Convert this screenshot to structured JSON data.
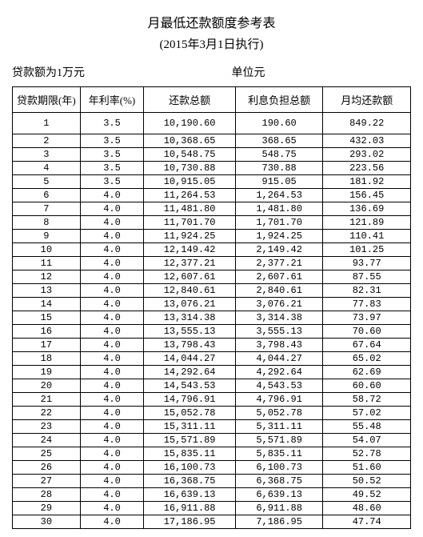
{
  "title": "月最低还款额度参考表",
  "subtitle": "(2015年3月1日执行)",
  "meta": {
    "loan_amount": "贷款额为1万元",
    "unit": "单位元"
  },
  "columns": [
    "贷款期限(年)",
    "年利率(%)",
    "还款总额",
    "利息负担总额",
    "月均还款额"
  ],
  "rows": [
    [
      "1",
      "3.5",
      "10,190.60",
      "190.60",
      "849.22"
    ],
    [
      "2",
      "3.5",
      "10,368.65",
      "368.65",
      "432.03"
    ],
    [
      "3",
      "3.5",
      "10,548.75",
      "548.75",
      "293.02"
    ],
    [
      "4",
      "3.5",
      "10,730.88",
      "730.88",
      "223.56"
    ],
    [
      "5",
      "3.5",
      "10,915.05",
      "915.05",
      "181.92"
    ],
    [
      "6",
      "4.0",
      "11,264.53",
      "1,264.53",
      "156.45"
    ],
    [
      "7",
      "4.0",
      "11,481.80",
      "1,481.80",
      "136.69"
    ],
    [
      "8",
      "4.0",
      "11,701.70",
      "1,701.70",
      "121.89"
    ],
    [
      "9",
      "4.0",
      "11,924.25",
      "1,924.25",
      "110.41"
    ],
    [
      "10",
      "4.0",
      "12,149.42",
      "2,149.42",
      "101.25"
    ],
    [
      "11",
      "4.0",
      "12,377.21",
      "2,377.21",
      "93.77"
    ],
    [
      "12",
      "4.0",
      "12,607.61",
      "2,607.61",
      "87.55"
    ],
    [
      "13",
      "4.0",
      "12,840.61",
      "2,840.61",
      "82.31"
    ],
    [
      "14",
      "4.0",
      "13,076.21",
      "3,076.21",
      "77.83"
    ],
    [
      "15",
      "4.0",
      "13,314.38",
      "3,314.38",
      "73.97"
    ],
    [
      "16",
      "4.0",
      "13,555.13",
      "3,555.13",
      "70.60"
    ],
    [
      "17",
      "4.0",
      "13,798.43",
      "3,798.43",
      "67.64"
    ],
    [
      "18",
      "4.0",
      "14,044.27",
      "4,044.27",
      "65.02"
    ],
    [
      "19",
      "4.0",
      "14,292.64",
      "4,292.64",
      "62.69"
    ],
    [
      "20",
      "4.0",
      "14,543.53",
      "4,543.53",
      "60.60"
    ],
    [
      "21",
      "4.0",
      "14,796.91",
      "4,796.91",
      "58.72"
    ],
    [
      "22",
      "4.0",
      "15,052.78",
      "5,052.78",
      "57.02"
    ],
    [
      "23",
      "4.0",
      "15,311.11",
      "5,311.11",
      "55.48"
    ],
    [
      "24",
      "4.0",
      "15,571.89",
      "5,571.89",
      "54.07"
    ],
    [
      "25",
      "4.0",
      "15,835.11",
      "5,835.11",
      "52.78"
    ],
    [
      "26",
      "4.0",
      "16,100.73",
      "6,100.73",
      "51.60"
    ],
    [
      "27",
      "4.0",
      "16,368.75",
      "6,368.75",
      "50.52"
    ],
    [
      "28",
      "4.0",
      "16,639.13",
      "6,639.13",
      "49.52"
    ],
    [
      "29",
      "4.0",
      "16,911.88",
      "6,911.88",
      "48.60"
    ],
    [
      "30",
      "4.0",
      "17,186.95",
      "7,186.95",
      "47.74"
    ]
  ]
}
